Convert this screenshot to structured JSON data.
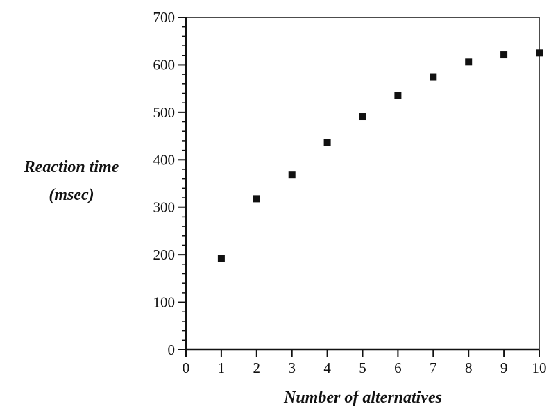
{
  "chart_data": {
    "type": "scatter",
    "title": "",
    "xlabel": "Number of alternatives",
    "ylabel_lines": [
      "Reaction time",
      "(msec)"
    ],
    "x": [
      1,
      2,
      3,
      4,
      5,
      6,
      7,
      8,
      9,
      10
    ],
    "y": [
      192,
      318,
      368,
      436,
      491,
      535,
      575,
      606,
      621,
      625
    ],
    "xlim": [
      0,
      10
    ],
    "ylim": [
      0,
      700
    ],
    "xticks": [
      "0",
      "1",
      "2",
      "3",
      "4",
      "5",
      "6",
      "7",
      "8",
      "9",
      "10"
    ],
    "yticks": [
      "0",
      "100",
      "200",
      "300",
      "400",
      "500",
      "600",
      "700"
    ],
    "grid": false,
    "legend": "none",
    "marker": "square",
    "color": "#111111"
  }
}
